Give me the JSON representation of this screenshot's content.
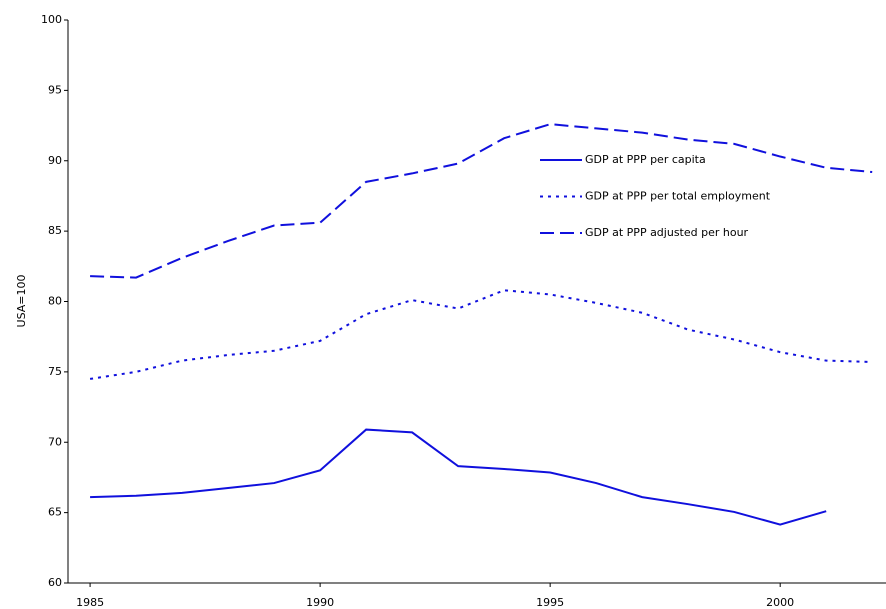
{
  "chart_data": {
    "type": "line",
    "y_label": "USA=100",
    "x": [
      1985,
      1986,
      1987,
      1988,
      1989,
      1990,
      1991,
      1992,
      1993,
      1994,
      1995,
      1996,
      1997,
      1998,
      1999,
      2000,
      2001,
      2002
    ],
    "series": [
      {
        "name": "GDP at PPP per capita",
        "color": "#1010dd",
        "dash": "solid",
        "values": [
          66.1,
          66.2,
          66.4,
          66.75,
          67.1,
          68.0,
          70.9,
          70.7,
          68.3,
          68.1,
          67.85,
          67.1,
          66.1,
          65.6,
          65.05,
          64.15,
          65.1,
          null
        ]
      },
      {
        "name": "GDP at PPP per total employment",
        "color": "#1010dd",
        "dash": "dotted",
        "values": [
          74.5,
          75.0,
          75.8,
          76.2,
          76.5,
          77.2,
          79.1,
          80.1,
          79.5,
          80.8,
          80.5,
          79.9,
          79.2,
          78.0,
          77.3,
          76.4,
          75.8,
          75.7
        ]
      },
      {
        "name": "GDP at PPP adjusted per hour",
        "color": "#1010dd",
        "dash": "dashed",
        "values": [
          81.8,
          81.7,
          83.1,
          84.3,
          85.4,
          85.6,
          88.5,
          89.1,
          89.8,
          91.6,
          92.6,
          92.3,
          92.0,
          91.5,
          91.2,
          90.3,
          89.5,
          89.2
        ]
      }
    ],
    "xlim": [
      1984.52,
      2002.3
    ],
    "xticks": [
      1985,
      1990,
      1995,
      2000
    ],
    "ylim": [
      60,
      100
    ],
    "yticks": [
      60,
      65,
      70,
      75,
      80,
      85,
      90,
      95,
      100
    ],
    "grid": false,
    "legend": "upper right"
  }
}
